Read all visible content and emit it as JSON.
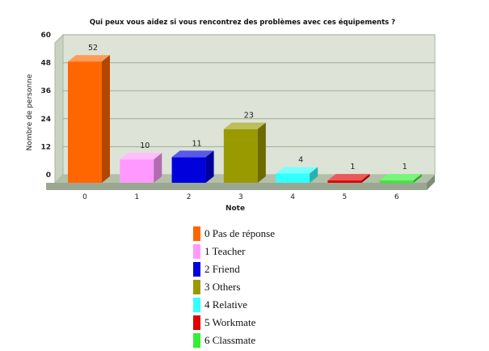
{
  "chart_data": {
    "type": "bar",
    "title": "Qui peux vous aidez si vous rencontrez des problèmes avec ces équipements ?",
    "xlabel": "Note",
    "ylabel": "Nombre de personne",
    "ylim": [
      0,
      60
    ],
    "yticks": [
      "0",
      "12",
      "24",
      "36",
      "48",
      "60"
    ],
    "categories": [
      "0",
      "1",
      "2",
      "3",
      "4",
      "5",
      "6"
    ],
    "values": [
      52,
      10,
      11,
      23,
      4,
      1,
      1
    ],
    "colors": [
      "#ff6600",
      "#ff99ff",
      "#0000dd",
      "#999900",
      "#33ffff",
      "#dd0000",
      "#33ee33"
    ],
    "grid": true,
    "legend_position": "bottom",
    "legend": [
      {
        "label": "0 Pas de réponse",
        "color": "#ff6600"
      },
      {
        "label": "1 Teacher",
        "color": "#ff99ff"
      },
      {
        "label": "2 Friend",
        "color": "#0000dd"
      },
      {
        "label": "3 Others",
        "color": "#999900"
      },
      {
        "label": "4 Relative",
        "color": "#33ffff"
      },
      {
        "label": "5 Workmate",
        "color": "#dd0000"
      },
      {
        "label": "6 Classmate",
        "color": "#33ee33"
      }
    ]
  }
}
